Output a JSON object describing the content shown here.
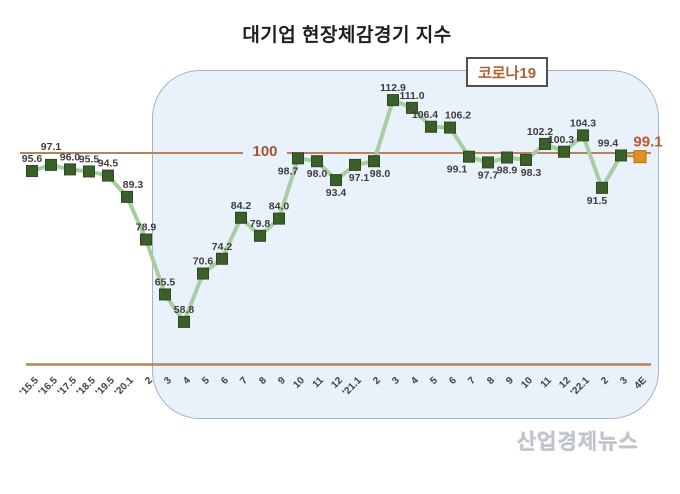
{
  "title": "대기업 현장체감경기 지수",
  "annotation": {
    "label": "코로나19"
  },
  "watermark": "산업경제뉴스",
  "chart_data": {
    "type": "line",
    "title": "대기업 현장체감경기 지수",
    "series_name": "대기업 현장체감경기 지수",
    "categories": [
      "'15.5",
      "'16.5",
      "'17.5",
      "'18.5",
      "'19.5",
      "'20.1",
      "2",
      "3",
      "4",
      "5",
      "6",
      "7",
      "8",
      "9",
      "10",
      "11",
      "12",
      "'21.1",
      "2",
      "3",
      "4",
      "5",
      "6",
      "7",
      "8",
      "9",
      "10",
      "11",
      "12",
      "'22.1",
      "2",
      "3",
      "4E"
    ],
    "values": [
      95.6,
      97.1,
      96.0,
      95.5,
      94.5,
      89.3,
      78.9,
      65.5,
      58.8,
      70.6,
      74.2,
      84.2,
      79.8,
      84.0,
      98.7,
      98.0,
      93.4,
      97.1,
      98.0,
      112.9,
      111.0,
      106.4,
      106.2,
      99.1,
      97.7,
      98.9,
      98.3,
      102.2,
      100.3,
      104.3,
      91.5,
      99.4,
      99.1
    ],
    "reference_line": {
      "value": 100,
      "label": "100"
    },
    "annotation_label": "코로나19",
    "highlight_last_point": true,
    "ylim": [
      55,
      120
    ],
    "y_axis_visible": false,
    "grid": false,
    "legend": false,
    "label_side": [
      "above",
      "above",
      "above",
      "above",
      "above",
      "above",
      "above",
      "above",
      "above",
      "above",
      "above",
      "above",
      "above",
      "above",
      "below",
      "below",
      "below",
      "below",
      "below",
      "above",
      "above",
      "above",
      "above",
      "below",
      "below",
      "below",
      "below",
      "above",
      "above",
      "above",
      "below",
      "above",
      "above"
    ],
    "label_dx": [
      0,
      0,
      0,
      0,
      0,
      6,
      0,
      0,
      0,
      0,
      0,
      0,
      0,
      0,
      -10,
      0,
      0,
      4,
      6,
      0,
      0,
      -6,
      8,
      -12,
      0,
      0,
      5,
      -5,
      -3,
      0,
      -5,
      -13,
      8
    ],
    "label_dy": [
      0,
      -6,
      0,
      0,
      0,
      0,
      0,
      0,
      0,
      0,
      0,
      0,
      0,
      0,
      0,
      0,
      0,
      0,
      0,
      0,
      0,
      0,
      0,
      0,
      0,
      0,
      0,
      0,
      0,
      0,
      0,
      0,
      0
    ],
    "colors": {
      "line": "#a9cda2",
      "marker": "#3b5f2b",
      "marker_border": "#2c4a1e",
      "highlight_marker": "#e7901f",
      "highlight_border": "#b06f12",
      "highlight_line": "#d08a3e",
      "highlight_label": "#c2572e",
      "reference": "#b98257",
      "data_label": "#3d3d3d",
      "axis_label": "#3f3f3f",
      "plot_bg": "#e9f1fa",
      "plot_border": "#a3b6c6",
      "annotation_text": "#ad6233"
    }
  }
}
